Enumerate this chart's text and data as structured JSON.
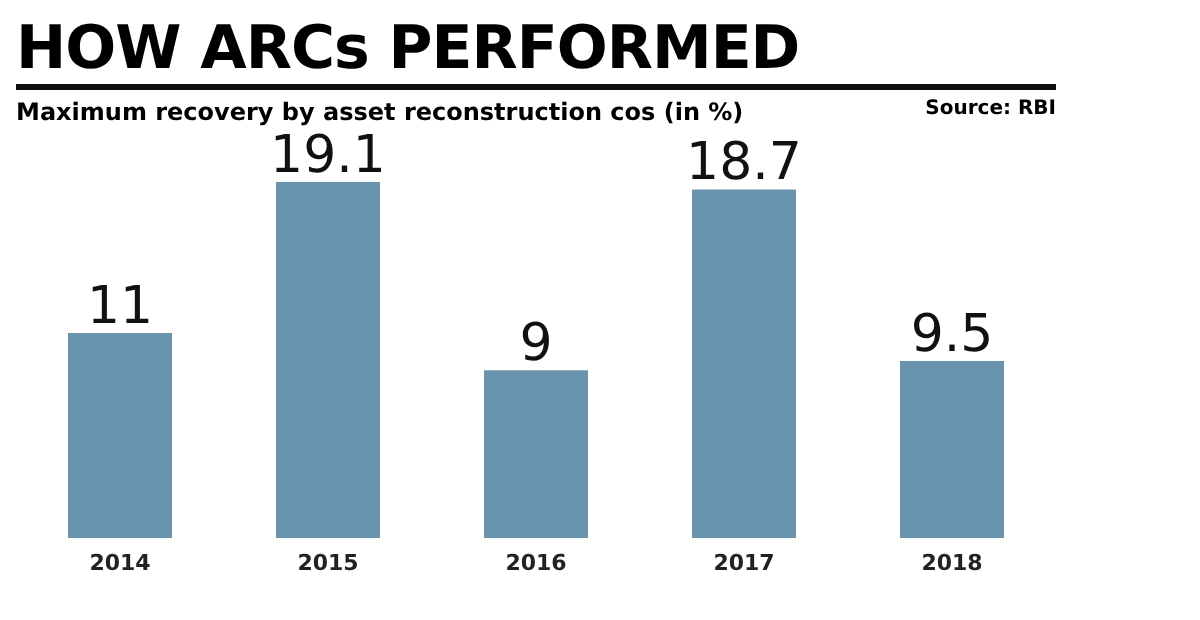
{
  "chart_data": {
    "type": "bar",
    "title": "HOW ARCs PERFORMED",
    "subtitle": "Maximum recovery by asset reconstruction cos (in %)",
    "annotations": [
      "Source: RBI"
    ],
    "categories": [
      "2014",
      "2015",
      "2016",
      "2017",
      "2018"
    ],
    "values": [
      11,
      19.1,
      9,
      18.7,
      9.5
    ],
    "color": "#6a93ad",
    "data_labels": true,
    "grid": false,
    "legend": false
  }
}
